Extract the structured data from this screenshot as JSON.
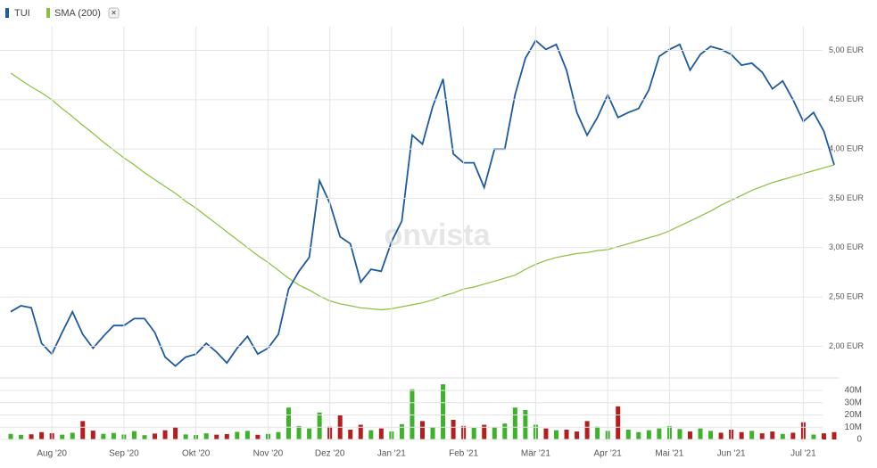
{
  "chart_data": [
    {
      "type": "line",
      "watermark": "onvista",
      "categories": [
        null,
        null,
        null,
        null,
        "Aug '20",
        null,
        null,
        null,
        null,
        null,
        null,
        "Sep '20",
        null,
        null,
        null,
        null,
        null,
        null,
        "Okt '20",
        null,
        null,
        null,
        null,
        null,
        null,
        "Nov '20",
        null,
        null,
        null,
        null,
        null,
        "Dez '20",
        null,
        null,
        null,
        null,
        null,
        "Jan '21",
        null,
        null,
        null,
        null,
        null,
        null,
        "Feb '21",
        null,
        null,
        null,
        null,
        null,
        null,
        "Mär '21",
        null,
        null,
        null,
        null,
        null,
        null,
        "Apr '21",
        null,
        null,
        null,
        null,
        null,
        "Mai '21",
        null,
        null,
        null,
        null,
        null,
        "Jun '21",
        null,
        null,
        null,
        null,
        null,
        null,
        "Jul '21",
        null,
        null,
        null
      ],
      "series": [
        {
          "name": "TUI",
          "color": "#1d5aa0",
          "values": [
            2.35,
            2.41,
            2.39,
            2.03,
            1.92,
            2.14,
            2.35,
            2.12,
            1.98,
            2.1,
            2.21,
            2.21,
            2.28,
            2.28,
            2.14,
            1.89,
            1.8,
            1.89,
            1.92,
            2.03,
            1.94,
            1.83,
            1.98,
            2.1,
            1.92,
            1.98,
            2.12,
            2.58,
            2.76,
            2.9,
            3.68,
            3.45,
            3.11,
            3.04,
            2.65,
            2.78,
            2.76,
            3.06,
            3.27,
            4.14,
            4.05,
            4.43,
            4.71,
            3.95,
            3.86,
            3.86,
            3.61,
            4.0,
            4.0,
            4.55,
            4.92,
            5.1,
            5.01,
            5.06,
            4.8,
            4.37,
            4.14,
            4.32,
            4.55,
            4.32,
            4.37,
            4.41,
            4.6,
            4.94,
            5.01,
            5.06,
            4.8,
            4.96,
            5.04,
            5.01,
            4.96,
            4.85,
            4.87,
            4.78,
            4.61,
            4.69,
            4.5,
            4.28,
            4.37,
            4.18,
            3.84
          ]
        },
        {
          "name": "SMA (200)",
          "color": "#8cbf3f",
          "values": [
            4.77,
            4.7,
            4.63,
            4.57,
            4.5,
            4.41,
            4.33,
            4.24,
            4.16,
            4.07,
            3.99,
            3.91,
            3.84,
            3.76,
            3.69,
            3.62,
            3.55,
            3.47,
            3.4,
            3.32,
            3.24,
            3.16,
            3.08,
            3.0,
            2.92,
            2.85,
            2.77,
            2.69,
            2.62,
            2.57,
            2.51,
            2.46,
            2.43,
            2.41,
            2.39,
            2.38,
            2.37,
            2.38,
            2.4,
            2.42,
            2.44,
            2.47,
            2.51,
            2.54,
            2.58,
            2.6,
            2.63,
            2.66,
            2.69,
            2.72,
            2.78,
            2.83,
            2.87,
            2.9,
            2.92,
            2.94,
            2.95,
            2.97,
            2.98,
            3.01,
            3.04,
            3.07,
            3.1,
            3.13,
            3.17,
            3.22,
            3.27,
            3.32,
            3.37,
            3.43,
            3.48,
            3.53,
            3.58,
            3.62,
            3.66,
            3.69,
            3.72,
            3.75,
            3.78,
            3.81,
            3.84
          ]
        }
      ],
      "ylim": [
        1.66,
        5.24
      ],
      "yticks": [
        {
          "value": 2,
          "label": "2,00 EUR"
        },
        {
          "value": 2.5,
          "label": "2,50 EUR"
        },
        {
          "value": 3,
          "label": "3,00 EUR"
        },
        {
          "value": 3.5,
          "label": "3,50 EUR"
        },
        {
          "value": 4,
          "label": "4,00 EUR"
        },
        {
          "value": 4.5,
          "label": "4,50 EUR"
        },
        {
          "value": 5,
          "label": "5,00 EUR"
        }
      ],
      "grid": true,
      "close_button": "×"
    },
    {
      "type": "bar",
      "values": [
        4500000,
        3800000,
        4200000,
        6000000,
        5100000,
        3900000,
        5500000,
        15000000,
        7200000,
        4600000,
        5300000,
        4000000,
        6800000,
        3500000,
        4800000,
        7500000,
        9800000,
        4100000,
        3600000,
        5000000,
        3900000,
        4400000,
        6200000,
        7000000,
        3800000,
        4500000,
        6000000,
        26000000,
        11000000,
        9000000,
        22000000,
        10500000,
        20000000,
        8000000,
        12000000,
        7500000,
        9000000,
        6500000,
        12500000,
        41000000,
        15000000,
        10000000,
        45000000,
        16000000,
        11000000,
        9500000,
        12000000,
        10000000,
        13000000,
        26000000,
        24000000,
        12000000,
        9000000,
        7500000,
        8000000,
        6500000,
        15000000,
        10500000,
        7000000,
        27000000,
        8000000,
        6000000,
        7500000,
        9000000,
        11000000,
        8500000,
        6500000,
        9000000,
        7000000,
        5500000,
        8000000,
        6000000,
        7000000,
        5000000,
        6500000,
        4500000,
        5500000,
        14000000,
        4000000,
        5000000,
        6000000
      ],
      "up_color": "#3db22a",
      "down_color": "#b51e1e",
      "ylim": [
        0,
        49000000
      ],
      "yticks": [
        0,
        {
          "value": 10000000,
          "label": "10M"
        },
        {
          "value": 20000000,
          "label": "20M"
        },
        {
          "value": 30000000,
          "label": "30M"
        },
        {
          "value": 40000000,
          "label": "40M"
        }
      ],
      "grid": true
    }
  ]
}
